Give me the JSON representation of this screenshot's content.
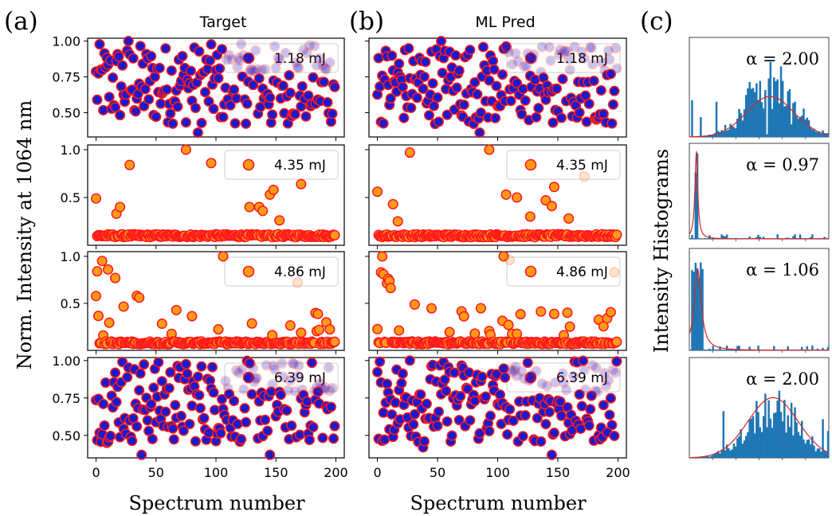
{
  "panel_labels": [
    "(a)",
    "(b)",
    "(c)"
  ],
  "column_titles": [
    "Target",
    "ML Pred"
  ],
  "ylabel": "Norm. Intensity at 1064 nm",
  "xlabel": "Spectrum number",
  "hist_ylabel": "Intensity Histograms",
  "colors": {
    "blue_fill": "#1a1acc",
    "orange_fill": "#ff9a1a",
    "marker_edge": "#ff1a1a",
    "hist_bar": "#1f77b4",
    "fit_line": "#d62728"
  },
  "chart_data": [
    {
      "type": "scatter",
      "column": "Target",
      "rows": [
        {
          "legend": "1.18 mJ",
          "yticks": [
            "1.00",
            "0.75",
            "0.50"
          ],
          "ylim": [
            0.33,
            1.02
          ],
          "distribution": "uniform",
          "range": [
            0.42,
            0.98
          ],
          "extremes": [
            [
              27,
              1.0
            ],
            [
              85,
              0.36
            ],
            [
              146,
              0.43
            ]
          ]
        },
        {
          "legend": "4.35 mJ",
          "yticks": [
            "1.0",
            "0.5"
          ],
          "ylim": [
            0.0,
            1.05
          ],
          "distribution": "baseline",
          "baseline": 0.1,
          "outliers": [
            [
              0,
              0.49
            ],
            [
              17,
              0.33
            ],
            [
              20,
              0.4
            ],
            [
              28,
              0.84
            ],
            [
              75,
              1.0
            ],
            [
              96,
              0.86
            ],
            [
              128,
              0.4
            ],
            [
              136,
              0.4
            ],
            [
              139,
              0.36
            ],
            [
              145,
              0.53
            ],
            [
              148,
              0.58
            ],
            [
              153,
              0.26
            ],
            [
              171,
              0.64
            ]
          ]
        },
        {
          "legend": "4.86 mJ",
          "yticks": [
            "1.0",
            "0.5"
          ],
          "ylim": [
            0.0,
            1.05
          ],
          "distribution": "decay",
          "baseline": 0.08,
          "outliers": [
            [
              5,
              0.95
            ],
            [
              10,
              0.86
            ],
            [
              16,
              0.77
            ],
            [
              106,
              1.0
            ],
            [
              168,
              0.72
            ]
          ]
        },
        {
          "legend": "6.39 mJ",
          "yticks": [
            "1.00",
            "0.75",
            "0.50"
          ],
          "ylim": [
            0.35,
            1.02
          ],
          "distribution": "uniform",
          "range": [
            0.45,
            1.0
          ],
          "extremes": [
            [
              38,
              0.37
            ],
            [
              145,
              0.37
            ],
            [
              22,
              0.99
            ]
          ]
        }
      ],
      "xticks": [
        0,
        50,
        100,
        150,
        200
      ],
      "xlim": [
        -7,
        207
      ],
      "n": 200
    },
    {
      "type": "scatter",
      "column": "ML Pred",
      "rows": [
        {
          "legend": "1.18 mJ",
          "ylim": [
            0.33,
            1.02
          ],
          "distribution": "uniform",
          "range": [
            0.42,
            0.98
          ],
          "extremes": [
            [
              53,
              1.0
            ],
            [
              85,
              0.36
            ],
            [
              146,
              0.43
            ]
          ]
        },
        {
          "legend": "4.35 mJ",
          "ylim": [
            0.0,
            1.05
          ],
          "distribution": "baseline",
          "baseline": 0.1,
          "outliers": [
            [
              0,
              0.56
            ],
            [
              13,
              0.43
            ],
            [
              17,
              0.25
            ],
            [
              27,
              0.97
            ],
            [
              93,
              1.0
            ],
            [
              107,
              0.53
            ],
            [
              116,
              0.5
            ],
            [
              127,
              0.3
            ],
            [
              140,
              0.47
            ],
            [
              145,
              0.41
            ],
            [
              147,
              0.61
            ],
            [
              159,
              0.28
            ],
            [
              172,
              0.72
            ]
          ]
        },
        {
          "legend": "4.86 mJ",
          "ylim": [
            0.0,
            1.05
          ],
          "distribution": "decay",
          "baseline": 0.08,
          "outliers": [
            [
              3,
              0.83
            ],
            [
              9,
              0.76
            ],
            [
              105,
              1.0
            ],
            [
              110,
              0.96
            ],
            [
              197,
              0.83
            ]
          ]
        },
        {
          "legend": "6.39 mJ",
          "ylim": [
            0.35,
            1.02
          ],
          "distribution": "uniform",
          "range": [
            0.45,
            1.0
          ],
          "extremes": [
            [
              38,
              0.42
            ],
            [
              145,
              0.37
            ],
            [
              27,
              1.0
            ],
            [
              184,
              0.5
            ]
          ]
        }
      ],
      "xticks": [
        0,
        50,
        100,
        150,
        200
      ],
      "xlim": [
        -7,
        207
      ],
      "n": 200
    },
    {
      "type": "bar",
      "subtype": "histogram",
      "panels": [
        {
          "alpha_label": "α = 2.00",
          "fit": "gaussian",
          "center": 0.58,
          "width": 0.17,
          "peak": 0.42,
          "max_bar": 0.65
        },
        {
          "alpha_label": "α = 0.97",
          "fit": "spike",
          "center": 0.05,
          "width": 0.012,
          "peak": 0.95,
          "max_bar": 1.0
        },
        {
          "alpha_label": "α = 1.06",
          "fit": "spike",
          "center": 0.06,
          "width": 0.03,
          "peak": 0.82,
          "max_bar": 0.9
        },
        {
          "alpha_label": "α = 2.00",
          "fit": "gaussian",
          "center": 0.6,
          "width": 0.18,
          "peak": 0.62,
          "max_bar": 0.62
        }
      ]
    }
  ]
}
